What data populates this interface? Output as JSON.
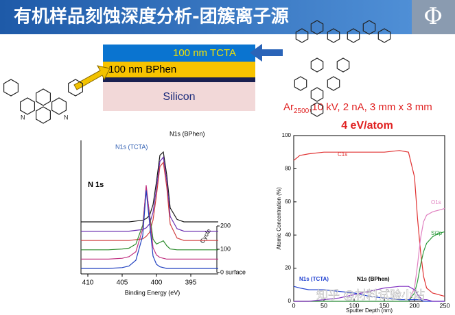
{
  "header": {
    "title": "有机样品刻蚀深度分析-团簇离子源",
    "logo": "Φ"
  },
  "layers": [
    {
      "label": "100 nm TCTA"
    },
    {
      "label": "100 nm BPhen"
    },
    {
      "label": "Silicon"
    }
  ],
  "conditions": {
    "beam": "Ar",
    "cluster_size": "2500",
    "settings": ",10 kV, 2 nA, 3 mm x 3 mm",
    "energy": "4 eV/atom"
  },
  "watermark": "知乎 @材料试验小站",
  "chart_data": [
    {
      "type": "waterfall",
      "x_label": "Binding Energy (eV)",
      "z_label": "Cycle",
      "annotations": [
        "N 1s",
        "N1s (TCTA)",
        "N1s (BPhen)"
      ],
      "x": [
        411,
        409,
        407,
        405,
        404,
        403,
        402,
        401.5,
        401,
        400.5,
        400,
        399.5,
        399,
        398.5,
        398,
        397,
        396,
        394,
        392,
        391
      ],
      "xlim": [
        411,
        391
      ],
      "xticks": [
        410,
        405,
        400,
        395
      ],
      "zlim": [
        0,
        200
      ],
      "zticks": [
        {
          "value": 0,
          "label": "0 surface"
        },
        100,
        200
      ],
      "series": [
        {
          "z": 0,
          "color": "#1f3fbf",
          "values": [
            5,
            5,
            5,
            6,
            8,
            15,
            45,
            100,
            60,
            20,
            10,
            7,
            6,
            5,
            5,
            5,
            5,
            5,
            5,
            5
          ]
        },
        {
          "z": 40,
          "color": "#c03080",
          "values": [
            5,
            5,
            5,
            6,
            8,
            14,
            42,
            95,
            57,
            19,
            10,
            7,
            6,
            5,
            5,
            5,
            5,
            5,
            5,
            5
          ]
        },
        {
          "z": 80,
          "color": "#2a8a2a",
          "values": [
            5,
            5,
            5,
            6,
            7,
            12,
            35,
            80,
            48,
            18,
            12,
            14,
            16,
            10,
            6,
            5,
            5,
            5,
            5,
            5
          ]
        },
        {
          "z": 120,
          "color": "#d04040",
          "values": [
            5,
            5,
            5,
            5,
            5,
            6,
            7,
            10,
            15,
            30,
            60,
            95,
            100,
            70,
            25,
            8,
            5,
            5,
            5,
            5
          ]
        },
        {
          "z": 160,
          "color": "#6a2fb0",
          "values": [
            5,
            5,
            5,
            5,
            5,
            6,
            7,
            9,
            14,
            28,
            57,
            90,
            95,
            66,
            23,
            8,
            5,
            5,
            5,
            5
          ]
        },
        {
          "z": 200,
          "color": "#1a1a1a",
          "values": [
            5,
            5,
            5,
            5,
            5,
            6,
            7,
            9,
            13,
            26,
            54,
            86,
            90,
            62,
            22,
            8,
            5,
            5,
            5,
            5
          ]
        }
      ]
    },
    {
      "type": "line",
      "x_label": "Sputter Depth (nm)",
      "y_label": "Atomic Concentration (%)",
      "x": [
        0,
        10,
        25,
        50,
        75,
        100,
        125,
        150,
        175,
        190,
        200,
        205,
        210,
        215,
        220,
        230,
        240,
        250
      ],
      "xlim": [
        0,
        250
      ],
      "xticks": [
        0,
        50,
        100,
        150,
        200,
        250
      ],
      "ylim": [
        0,
        100
      ],
      "yticks": [
        0,
        20,
        40,
        60,
        80,
        100
      ],
      "series": [
        {
          "name": "C1s",
          "color": "#e03030",
          "values": [
            85,
            88,
            89,
            90,
            90,
            90,
            90,
            90,
            91,
            90,
            75,
            50,
            30,
            15,
            8,
            5,
            4,
            3
          ]
        },
        {
          "name": "O1s",
          "color": "#e080c0",
          "values": [
            0,
            0,
            0,
            0,
            0,
            0,
            0,
            0,
            0,
            0,
            8,
            22,
            38,
            48,
            52,
            54,
            55,
            56
          ]
        },
        {
          "name": "Si2p",
          "color": "#2a9a3a",
          "values": [
            0,
            0,
            0,
            0,
            0,
            0,
            0,
            0,
            0,
            0,
            5,
            12,
            22,
            30,
            35,
            39,
            41,
            42
          ]
        },
        {
          "name": "N1s (TCTA)",
          "color": "#2040d0",
          "values": [
            9,
            8,
            7,
            7,
            6,
            5,
            3,
            2,
            1,
            1,
            1,
            1,
            1,
            0,
            0,
            0,
            0,
            0
          ]
        },
        {
          "name": "N1s (BPhen)",
          "color": "#8030c0",
          "values": [
            0,
            0,
            0,
            1,
            2,
            4,
            6,
            8,
            9,
            9,
            7,
            4,
            2,
            1,
            1,
            0,
            0,
            0
          ]
        }
      ]
    }
  ]
}
